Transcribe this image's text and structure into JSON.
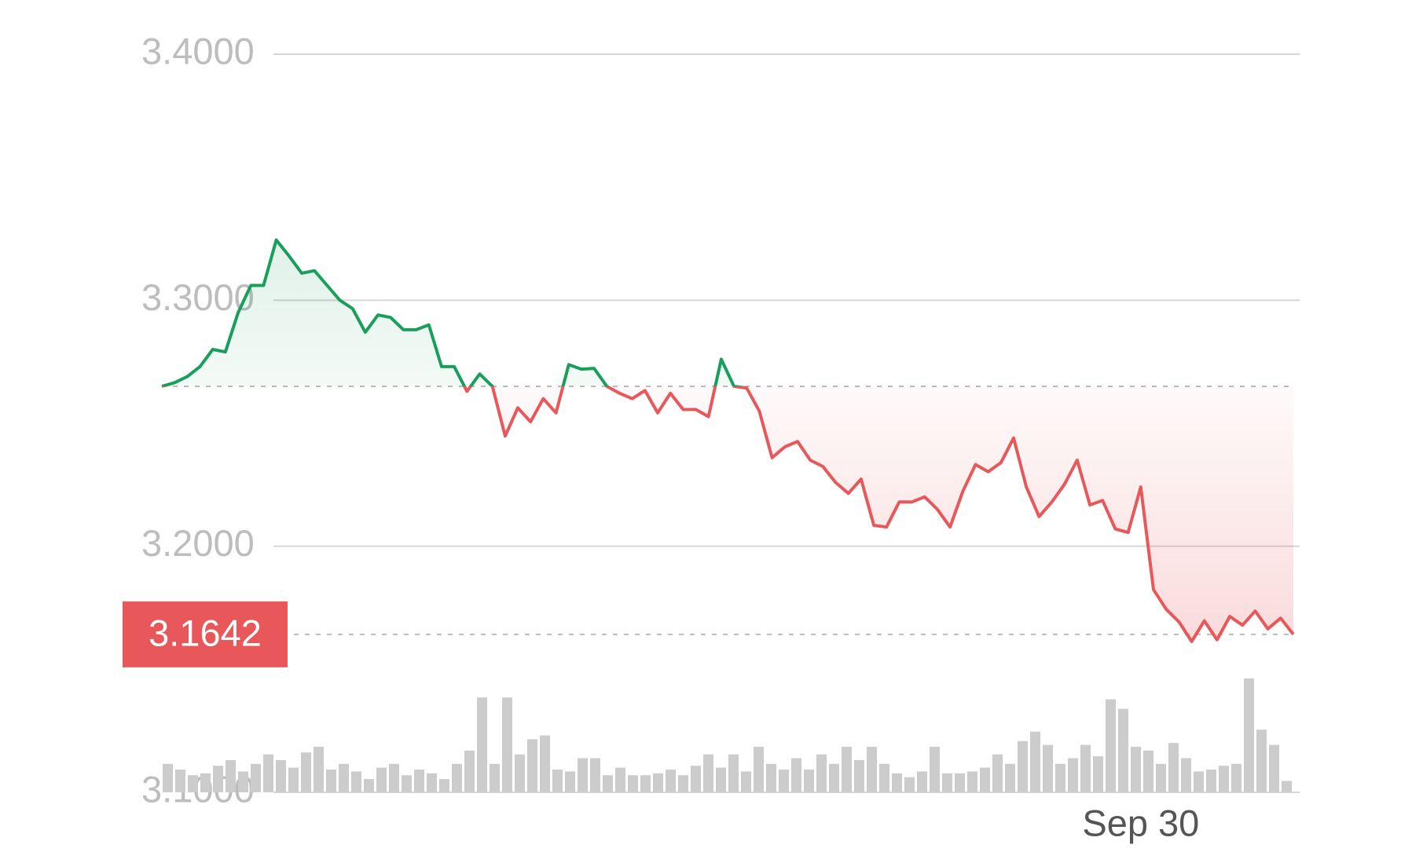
{
  "chart_data": {
    "type": "line",
    "ylim": [
      3.1,
      3.4
    ],
    "yticks": [
      {
        "value": 3.1,
        "label": "3.1000"
      },
      {
        "value": 3.2,
        "label": "3.2000"
      },
      {
        "value": 3.3,
        "label": "3.3000"
      },
      {
        "value": 3.4,
        "label": "3.4000"
      }
    ],
    "grid": true,
    "reference": 3.265,
    "last_value": 3.1642,
    "up_color": "#1a9e5c",
    "down_color": "#e8575a",
    "volume_color": "#cccccc",
    "xticks": [
      {
        "value": 77,
        "label": "Sep 30"
      }
    ],
    "values": [
      3.265,
      3.2665,
      3.269,
      3.273,
      3.28,
      3.279,
      3.295,
      3.306,
      3.306,
      3.3245,
      3.318,
      3.311,
      3.312,
      3.306,
      3.3,
      3.2966,
      3.287,
      3.294,
      3.293,
      3.288,
      3.288,
      3.29,
      3.273,
      3.273,
      3.263,
      3.27,
      3.265,
      3.2448,
      3.2563,
      3.2506,
      3.26,
      3.2542,
      3.2738,
      3.272,
      3.2723,
      3.265,
      3.2622,
      3.26,
      3.2633,
      3.2542,
      3.2622,
      3.2556,
      3.2556,
      3.2527,
      3.276,
      3.265,
      3.2643,
      3.2549,
      3.236,
      3.2404,
      3.2426,
      3.235,
      3.2324,
      3.2259,
      3.2215,
      3.2273,
      3.2085,
      3.2078,
      3.218,
      3.218,
      3.2201,
      3.215,
      3.2078,
      3.2223,
      3.2332,
      3.2303,
      3.234,
      3.244,
      3.2241,
      3.2121,
      3.218,
      3.2252,
      3.235,
      3.2168,
      3.2186,
      3.207,
      3.2056,
      3.2241,
      3.1824,
      3.1744,
      3.1693,
      3.1613,
      3.1697,
      3.162,
      3.1715,
      3.1679,
      3.1737,
      3.1664,
      3.1708,
      3.1642
    ],
    "volume": [
      30,
      24,
      18,
      20,
      28,
      34,
      22,
      30,
      40,
      34,
      26,
      42,
      48,
      24,
      30,
      22,
      14,
      26,
      30,
      18,
      24,
      20,
      14,
      30,
      44,
      100,
      30,
      100,
      40,
      56,
      60,
      24,
      22,
      36,
      36,
      18,
      26,
      18,
      18,
      20,
      24,
      18,
      28,
      40,
      26,
      40,
      22,
      48,
      30,
      24,
      36,
      24,
      40,
      30,
      48,
      34,
      48,
      30,
      20,
      16,
      22,
      48,
      20,
      20,
      22,
      26,
      40,
      30,
      54,
      64,
      50,
      30,
      36,
      50,
      38,
      98,
      88,
      48,
      44,
      30,
      52,
      36,
      22,
      24,
      28,
      30,
      120,
      66,
      50,
      12
    ]
  }
}
